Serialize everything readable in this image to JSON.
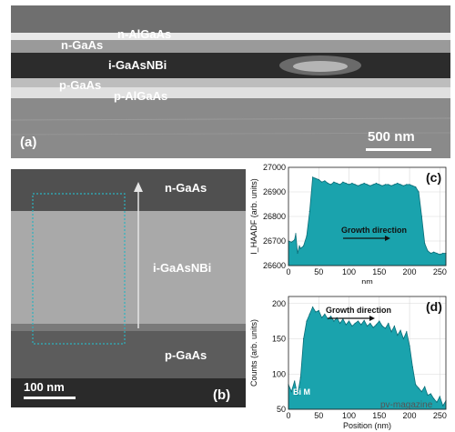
{
  "panel_a": {
    "label": "(a)",
    "scale": "500 nm",
    "layers": {
      "n_algaas": "n-AlGaAs",
      "n_gaas": "n-GaAs",
      "i_gaasnbi": "i-GaAsNBi",
      "p_gaas": "p-GaAs",
      "p_algaas": "p-AlGaAs"
    }
  },
  "panel_b": {
    "label": "(b)",
    "scale": "100 nm",
    "layers": {
      "n_gaas": "n-GaAs",
      "i_gaasnbi": "i-GaAsNBi",
      "p_gaas": "p-GaAs"
    }
  },
  "watermark": "pv-magazine",
  "colors": {
    "fill": "#1aa3ad",
    "line": "#0b6e78",
    "box": "#2bb3c0"
  },
  "chart_data": [
    {
      "type": "area",
      "panel_label": "(c)",
      "ylabel": "I_HAADF (arb. units)",
      "xlabel": "nm",
      "annotation": "Growth direction",
      "xlim": [
        0,
        260
      ],
      "ylim": [
        26600,
        27000
      ],
      "xticks": [
        "0",
        "50",
        "100",
        "150",
        "200",
        "250"
      ],
      "yticks": [
        "26600",
        "26700",
        "26800",
        "26900",
        "27000"
      ],
      "grid": true,
      "x": [
        0,
        5,
        10,
        12,
        15,
        18,
        20,
        25,
        30,
        35,
        40,
        45,
        50,
        55,
        60,
        65,
        70,
        75,
        80,
        85,
        90,
        95,
        100,
        105,
        110,
        115,
        120,
        125,
        130,
        135,
        140,
        145,
        150,
        155,
        160,
        165,
        170,
        175,
        180,
        185,
        190,
        195,
        200,
        205,
        210,
        215,
        220,
        225,
        230,
        235,
        240,
        245,
        250,
        255,
        260
      ],
      "y": [
        26700,
        26695,
        26705,
        26730,
        26650,
        26680,
        26670,
        26680,
        26720,
        26820,
        26960,
        26955,
        26950,
        26940,
        26945,
        26935,
        26930,
        26940,
        26935,
        26930,
        26940,
        26935,
        26930,
        26935,
        26930,
        26925,
        26930,
        26935,
        26930,
        26925,
        26930,
        26935,
        26930,
        26925,
        26930,
        26930,
        26925,
        26930,
        26935,
        26930,
        26925,
        26930,
        26930,
        26925,
        26920,
        26900,
        26800,
        26690,
        26660,
        26650,
        26655,
        26650,
        26645,
        26650,
        26650
      ]
    },
    {
      "type": "area",
      "panel_label": "(d)",
      "ylabel": "Counts (arb. units)",
      "xlabel": "Position (nm)",
      "series_label": "Bi M",
      "annotation": "Growth direction",
      "xlim": [
        0,
        260
      ],
      "ylim": [
        50,
        210
      ],
      "xticks": [
        "0",
        "50",
        "100",
        "150",
        "200",
        "250"
      ],
      "yticks": [
        "50",
        "100",
        "150",
        "200"
      ],
      "grid": true,
      "x": [
        0,
        5,
        10,
        15,
        20,
        25,
        30,
        35,
        40,
        45,
        50,
        55,
        60,
        65,
        70,
        75,
        80,
        85,
        90,
        95,
        100,
        105,
        110,
        115,
        120,
        125,
        130,
        135,
        140,
        145,
        150,
        155,
        160,
        165,
        170,
        175,
        180,
        185,
        190,
        195,
        200,
        205,
        210,
        215,
        220,
        225,
        230,
        235,
        240,
        245,
        250,
        255,
        260
      ],
      "y": [
        85,
        75,
        90,
        70,
        95,
        150,
        175,
        185,
        195,
        188,
        190,
        180,
        185,
        178,
        182,
        175,
        180,
        172,
        178,
        170,
        175,
        168,
        172,
        175,
        170,
        176,
        168,
        172,
        166,
        170,
        175,
        168,
        165,
        172,
        160,
        168,
        155,
        162,
        150,
        160,
        140,
        110,
        85,
        80,
        75,
        82,
        70,
        72,
        65,
        60,
        68,
        55,
        62
      ]
    }
  ]
}
